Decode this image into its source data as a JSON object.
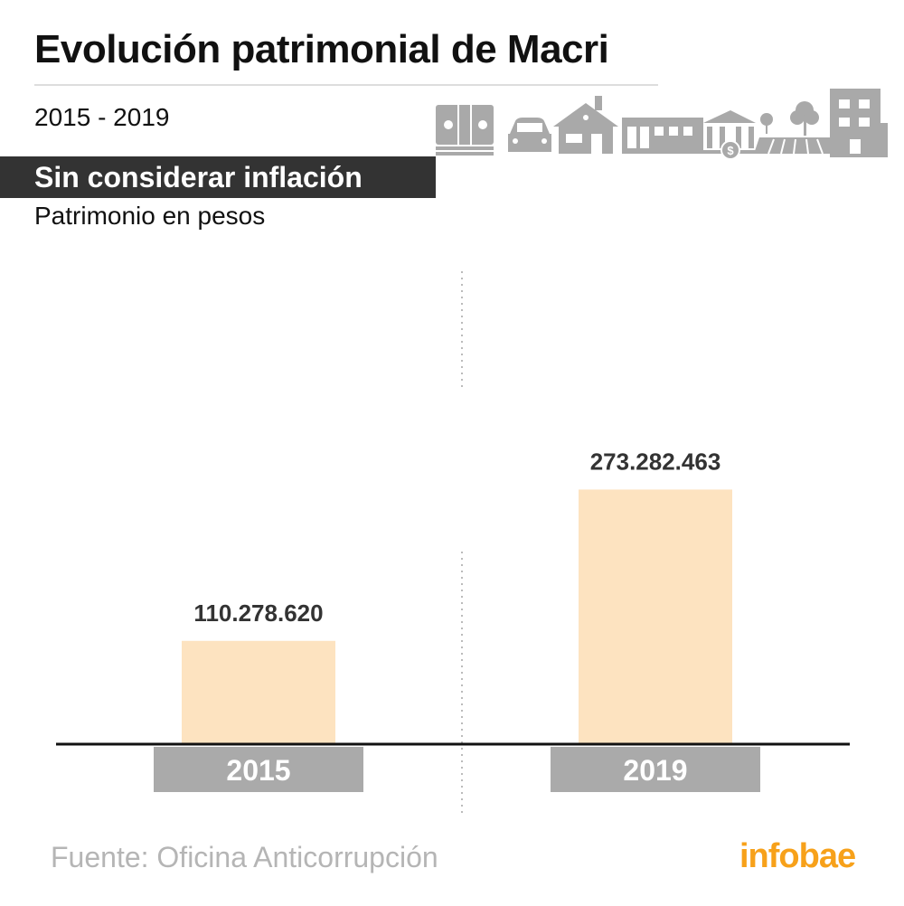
{
  "header": {
    "title": "Evolución patrimonial de Macri",
    "years": "2015 - 2019",
    "band": "Sin considerar inflación",
    "subtitle": "Patrimonio en pesos"
  },
  "icons": [
    "money-icon",
    "car-icon",
    "house-icon",
    "store-icon",
    "bank-icon",
    "farm-icon",
    "building-icon"
  ],
  "colors": {
    "bar": "#fde3c0",
    "label_box": "#aaaaaa",
    "axis": "#111111",
    "logo": "#f7a11a",
    "band": "#333333"
  },
  "chart_data": {
    "type": "bar",
    "categories": [
      "2015",
      "2019"
    ],
    "values": [
      110278620,
      273282463
    ],
    "value_labels": [
      "110.278.620",
      "273.282.463"
    ],
    "ylim": [
      0,
      300000000
    ],
    "grid": false
  },
  "footer": {
    "source": "Fuente: Oficina Anticorrupción",
    "logo": "infobae"
  }
}
